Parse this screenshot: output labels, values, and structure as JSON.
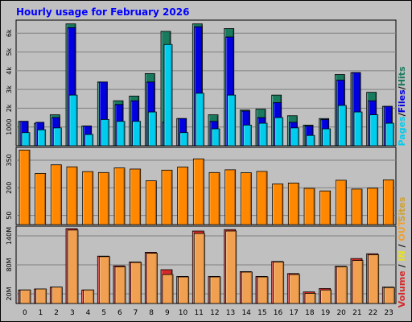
{
  "chart_data": [
    {
      "type": "bar",
      "title": "Hourly usage for February 2026",
      "categories": [
        "0",
        "1",
        "2",
        "3",
        "4",
        "5",
        "6",
        "7",
        "8",
        "9",
        "10",
        "11",
        "12",
        "13",
        "14",
        "15",
        "16",
        "17",
        "18",
        "19",
        "20",
        "21",
        "22",
        "23"
      ],
      "ylim": [
        0,
        6700
      ],
      "yticks": [
        {
          "label": "1000",
          "value": 1000
        },
        {
          "label": "2k",
          "value": 2000
        },
        {
          "label": "3k",
          "value": 3000
        },
        {
          "label": "4k",
          "value": 4000
        },
        {
          "label": "5k",
          "value": 5000
        },
        {
          "label": "6k",
          "value": 6000
        }
      ],
      "legend": [
        "Pages",
        "Files",
        "Hits"
      ],
      "series": [
        {
          "name": "Hits",
          "color": "#1a7a5e",
          "values": [
            1300,
            1200,
            1650,
            6500,
            1050,
            3400,
            2400,
            2650,
            3850,
            6100,
            1450,
            6500,
            1650,
            6250,
            1900,
            1950,
            2700,
            1600,
            1100,
            1450,
            3800,
            3900,
            2850,
            2100
          ]
        },
        {
          "name": "Files",
          "color": "#0000e0",
          "values": [
            1300,
            1250,
            1500,
            6300,
            1050,
            3400,
            2200,
            2400,
            3400,
            1250,
            1450,
            6350,
            1300,
            5800,
            1850,
            1500,
            2300,
            1250,
            1050,
            1400,
            3500,
            3900,
            2400,
            2100
          ]
        },
        {
          "name": "Pages",
          "color": "#00ccee",
          "values": [
            700,
            850,
            950,
            2700,
            600,
            1400,
            1300,
            1300,
            1800,
            5400,
            700,
            2800,
            900,
            2700,
            1100,
            1200,
            1500,
            950,
            550,
            900,
            2150,
            1800,
            1650,
            1200
          ]
        }
      ]
    },
    {
      "type": "bar",
      "categories": [
        "0",
        "1",
        "2",
        "3",
        "4",
        "5",
        "6",
        "7",
        "8",
        "9",
        "10",
        "11",
        "12",
        "13",
        "14",
        "15",
        "16",
        "17",
        "18",
        "19",
        "20",
        "21",
        "22",
        "23"
      ],
      "ylim": [
        0,
        420
      ],
      "yticks": [
        {
          "label": "50",
          "value": 50
        },
        {
          "label": "200",
          "value": 200
        },
        {
          "label": "350",
          "value": 350
        }
      ],
      "legend": [
        "Sites"
      ],
      "series": [
        {
          "name": "Sites",
          "color": "#ff8800",
          "values": [
            405,
            278,
            325,
            314,
            288,
            283,
            308,
            302,
            238,
            296,
            313,
            357,
            283,
            298,
            282,
            289,
            221,
            226,
            197,
            183,
            241,
            193,
            198,
            243
          ]
        }
      ]
    },
    {
      "type": "bar",
      "categories": [
        "0",
        "1",
        "2",
        "3",
        "4",
        "5",
        "6",
        "7",
        "8",
        "9",
        "10",
        "11",
        "12",
        "13",
        "14",
        "15",
        "16",
        "17",
        "18",
        "19",
        "20",
        "21",
        "22",
        "23"
      ],
      "ylim": [
        0,
        160
      ],
      "yticks": [
        {
          "label": "20M",
          "value": 20
        },
        {
          "label": "80M",
          "value": 80
        },
        {
          "label": "140M",
          "value": 140
        }
      ],
      "legend": [
        "Volume",
        "IN",
        "OUT"
      ],
      "series": [
        {
          "name": "Volume",
          "color": "#d42a2a",
          "values": [
            28,
            30,
            34,
            155,
            28,
            98,
            78,
            86,
            106,
            70,
            56,
            150,
            56,
            153,
            66,
            56,
            87,
            62,
            24,
            31,
            77,
            93,
            103,
            34
          ]
        },
        {
          "name": "OUT",
          "color": "#f0a050",
          "values": [
            28,
            30,
            34,
            152,
            28,
            97,
            76,
            85,
            104,
            60,
            55,
            145,
            55,
            150,
            65,
            55,
            86,
            60,
            21,
            28,
            76,
            89,
            101,
            33
          ]
        }
      ]
    }
  ]
}
